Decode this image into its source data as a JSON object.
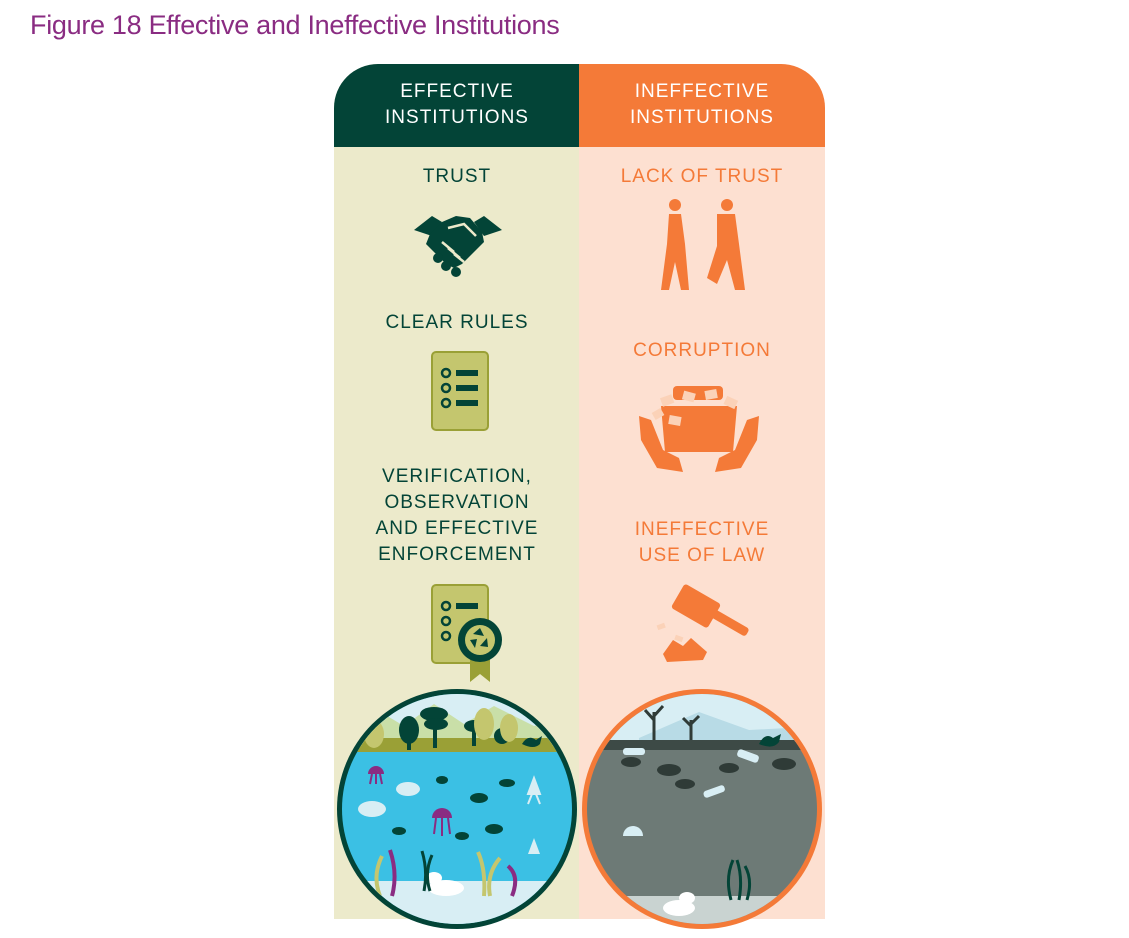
{
  "title": "Figure 18 Effective and Ineffective Institutions",
  "colors": {
    "title": "#8a2c82",
    "effective_dark": "#034437",
    "effective_bg": "#eceacb",
    "ineffective_orange": "#f47a38",
    "ineffective_bg": "#fde0d1",
    "clean_water": "#3bc0e4",
    "polluted_water": "#6d7a76"
  },
  "effective": {
    "header_line1": "EFFECTIVE",
    "header_line2": "INSTITUTIONS",
    "items": [
      {
        "label": [
          "TRUST"
        ],
        "icon": "handshake-icon"
      },
      {
        "label": [
          "CLEAR RULES"
        ],
        "icon": "checklist-icon"
      },
      {
        "label": [
          "VERIFICATION,",
          "OBSERVATION",
          "AND EFFECTIVE",
          "ENFORCEMENT"
        ],
        "icon": "certified-checklist-icon"
      }
    ],
    "scene": "healthy-ecosystem"
  },
  "ineffective": {
    "header_line1": "INEFFECTIVE",
    "header_line2": "INSTITUTIONS",
    "items": [
      {
        "label": [
          "LACK OF TRUST"
        ],
        "icon": "walking-away-icon"
      },
      {
        "label": [
          "CORRUPTION"
        ],
        "icon": "money-bag-hands-icon"
      },
      {
        "label": [
          "INEFFECTIVE",
          "USE OF LAW"
        ],
        "icon": "broken-gavel-icon"
      }
    ],
    "scene": "polluted-ecosystem"
  }
}
